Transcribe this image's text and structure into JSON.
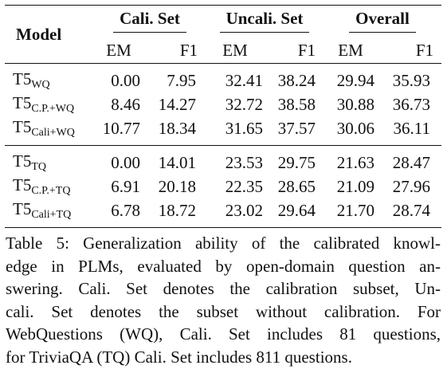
{
  "table": {
    "header": {
      "model": "Model",
      "groups": [
        "Cali. Set",
        "Uncali. Set",
        "Overall"
      ],
      "subcols": [
        "EM",
        "F1",
        "EM",
        "F1",
        "EM",
        "F1"
      ]
    },
    "blocks": [
      {
        "rows": [
          {
            "base": "T5",
            "sub": "WQ",
            "values": [
              "0.00",
              "7.95",
              "32.41",
              "38.24",
              "29.94",
              "35.93"
            ]
          },
          {
            "base": "T5",
            "sub": "C.P.+WQ",
            "values": [
              "8.46",
              "14.27",
              "32.72",
              "38.58",
              "30.88",
              "36.73"
            ]
          },
          {
            "base": "T5",
            "sub": "Cali+WQ",
            "values": [
              "10.77",
              "18.34",
              "31.65",
              "37.57",
              "30.06",
              "36.11"
            ]
          }
        ]
      },
      {
        "rows": [
          {
            "base": "T5",
            "sub": "TQ",
            "values": [
              "0.00",
              "14.01",
              "23.53",
              "29.75",
              "21.63",
              "28.47"
            ]
          },
          {
            "base": "T5",
            "sub": "C.P.+TQ",
            "values": [
              "6.91",
              "20.18",
              "22.35",
              "28.65",
              "21.09",
              "27.96"
            ]
          },
          {
            "base": "T5",
            "sub": "Cali+TQ",
            "values": [
              "6.78",
              "18.72",
              "23.02",
              "29.64",
              "21.70",
              "28.74"
            ]
          }
        ]
      }
    ]
  },
  "caption": {
    "lines": [
      "Table 5: Generalization ability of the calibrated knowl-",
      "edge in PLMs, evaluated by open-domain question an-",
      "swering. Cali. Set denotes the calibration subset, Un-",
      "cali. Set denotes the subset without calibration. For",
      "WebQuestions (WQ), Cali. Set includes 81 questions,",
      "for TriviaQA (TQ) Cali. Set includes 811 questions."
    ]
  }
}
